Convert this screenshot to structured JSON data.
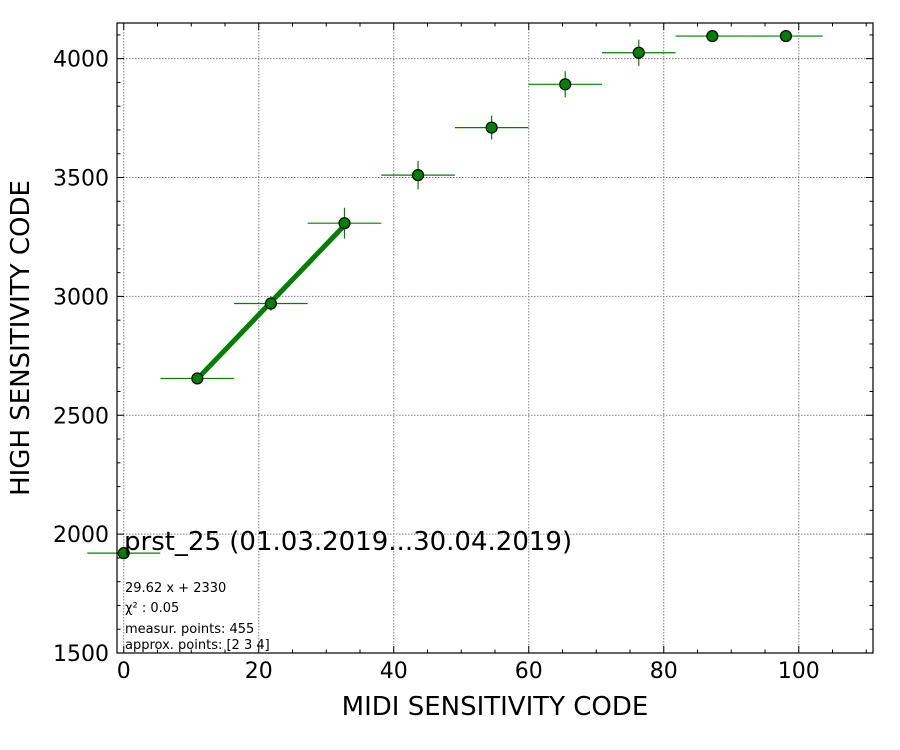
{
  "chart_data": {
    "type": "scatter",
    "title": "prst_25 (01.03.2019...30.04.2019)",
    "xlabel": "MIDI SENSITIVITY CODE",
    "ylabel": "HIGH SENSITIVITY CODE",
    "xlim": [
      -1,
      111
    ],
    "ylim": [
      1500,
      4150
    ],
    "xticks": [
      0,
      20,
      40,
      60,
      80,
      100
    ],
    "yticks": [
      1500,
      2000,
      2500,
      3000,
      3500,
      4000
    ],
    "xtick_labels": [
      "0",
      "20",
      "40",
      "60",
      "80",
      "100"
    ],
    "ytick_labels": [
      "1500",
      "2000",
      "2500",
      "3000",
      "3500",
      "4000"
    ],
    "grid": true,
    "marker_color": "#008000",
    "errorbar_color": "#008000",
    "fit_color": "#008000",
    "series": [
      {
        "points": [
          {
            "x": 0.0,
            "y": 1920,
            "xerr": 5.4,
            "yerr": 0
          },
          {
            "x": 10.9,
            "y": 2655,
            "xerr": 5.45,
            "yerr": 15
          },
          {
            "x": 21.8,
            "y": 2970,
            "xerr": 5.45,
            "yerr": 30
          },
          {
            "x": 32.7,
            "y": 3308,
            "xerr": 5.45,
            "yerr": 65
          },
          {
            "x": 43.6,
            "y": 3510,
            "xerr": 5.45,
            "yerr": 60
          },
          {
            "x": 54.5,
            "y": 3710,
            "xerr": 5.45,
            "yerr": 50
          },
          {
            "x": 65.4,
            "y": 3892,
            "xerr": 5.45,
            "yerr": 55
          },
          {
            "x": 76.3,
            "y": 4025,
            "xerr": 5.45,
            "yerr": 55
          },
          {
            "x": 87.2,
            "y": 4095,
            "xerr": 5.45,
            "yerr": 0
          },
          {
            "x": 98.1,
            "y": 4095,
            "xerr": 5.45,
            "yerr": 0
          }
        ]
      }
    ],
    "fit": {
      "slope": 29.62,
      "intercept": 2330,
      "x_range": [
        10.9,
        32.7
      ]
    },
    "annotations": [
      "29.62 x + 2330",
      "χ² : 0.05",
      "measur. points: 455",
      "approx. points: [2 3 4]"
    ]
  }
}
